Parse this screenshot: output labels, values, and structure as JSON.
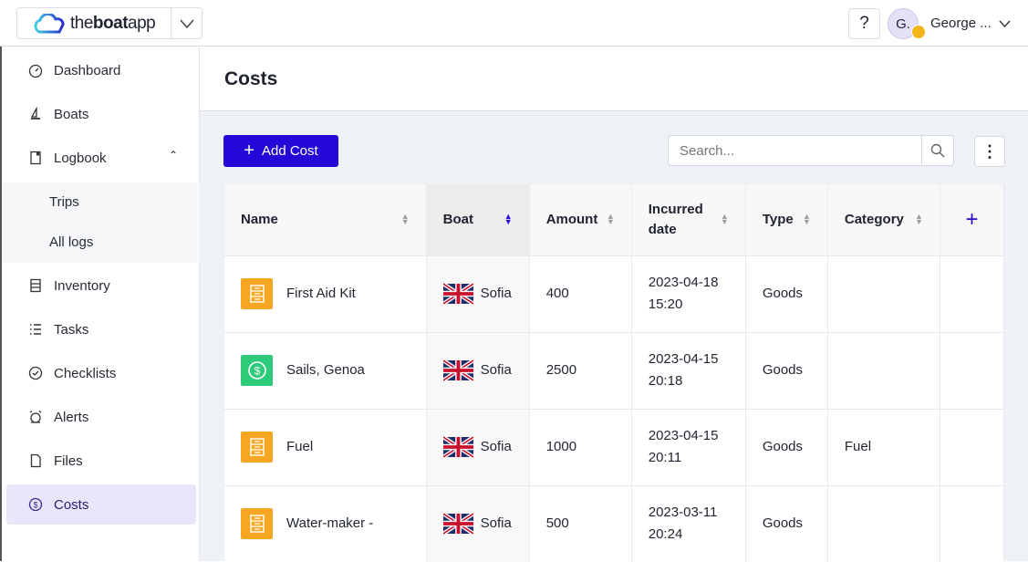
{
  "brand": {
    "pre": "the",
    "bold": "boat",
    "post": "app"
  },
  "header": {
    "help": "?",
    "avatar": "G.",
    "user": "George ..."
  },
  "sidebar": {
    "items": [
      {
        "label": "Dashboard",
        "icon": "gauge-icon"
      },
      {
        "label": "Boats",
        "icon": "sailboat-icon"
      },
      {
        "label": "Logbook",
        "icon": "book-icon"
      },
      {
        "label": "Inventory",
        "icon": "inventory-icon"
      },
      {
        "label": "Tasks",
        "icon": "list-icon"
      },
      {
        "label": "Checklists",
        "icon": "check-circle-icon"
      },
      {
        "label": "Alerts",
        "icon": "alarm-icon"
      },
      {
        "label": "Files",
        "icon": "file-icon"
      },
      {
        "label": "Costs",
        "icon": "dollar-circle-icon",
        "active": true
      }
    ],
    "sub": [
      "Trips",
      "All logs"
    ]
  },
  "page": {
    "title": "Costs",
    "add": "Add Cost",
    "search_placeholder": "Search..."
  },
  "table": {
    "columns": [
      "Name",
      "Boat",
      "Amount",
      "Incurred date",
      "Type",
      "Category"
    ],
    "sorted_column": "Boat",
    "rows": [
      {
        "name": "First Aid Kit",
        "icon": "inventory",
        "color": "#f5a623",
        "boat": "Sofia",
        "amount": "400",
        "date": "2023-04-18",
        "time": "15:20",
        "type": "Goods",
        "category": ""
      },
      {
        "name": "Sails, Genoa",
        "icon": "dollar",
        "color": "#2ecc7a",
        "boat": "Sofia",
        "amount": "2500",
        "date": "2023-04-15",
        "time": "20:18",
        "type": "Goods",
        "category": ""
      },
      {
        "name": "Fuel",
        "icon": "inventory",
        "color": "#f5a623",
        "boat": "Sofia",
        "amount": "1000",
        "date": "2023-04-15",
        "time": "20:11",
        "type": "Goods",
        "category": "Fuel"
      },
      {
        "name": "Water-maker -",
        "icon": "inventory",
        "color": "#f5a623",
        "boat": "Sofia",
        "amount": "500",
        "date": "2023-03-11",
        "time": "20:24",
        "type": "Goods",
        "category": ""
      }
    ]
  },
  "colors": {
    "accent": "#2508d8",
    "active_bg": "#ebe5fc"
  }
}
